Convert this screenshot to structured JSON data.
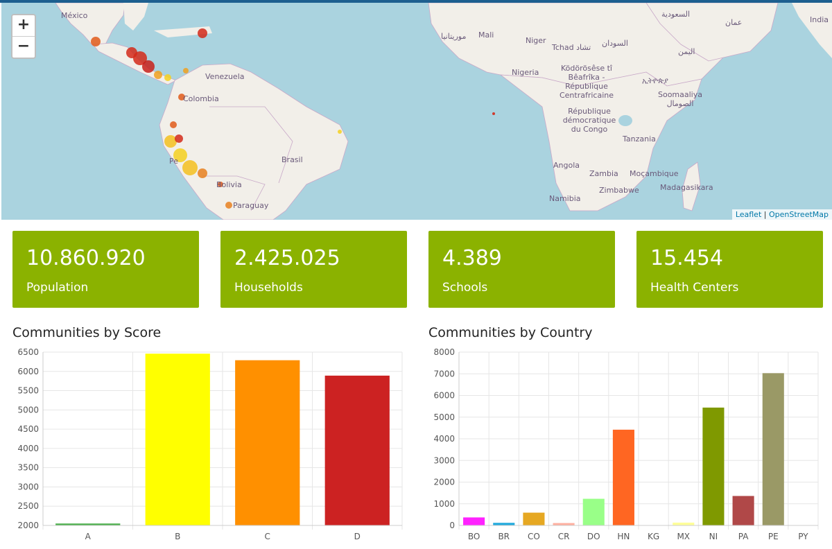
{
  "map": {
    "zoom_in": "+",
    "zoom_out": "−",
    "attribution_leaflet": "Leaflet",
    "attribution_sep": " | ",
    "attribution_osm": "OpenStreetMap",
    "labels": [
      {
        "text": "México"
      },
      {
        "text": "Venezuela"
      },
      {
        "text": "Colombia"
      },
      {
        "text": "Brasil"
      },
      {
        "text": "Bolivia"
      },
      {
        "text": "Paraguay"
      },
      {
        "text": "Mali"
      },
      {
        "text": "Niger"
      },
      {
        "text": "موريتانيا"
      },
      {
        "text": "Tchad تشاد"
      },
      {
        "text": "السودان"
      },
      {
        "text": "Nigeria"
      },
      {
        "text": "Ködörösêse tî Bêafrîka - République Centrafricaine"
      },
      {
        "text": "République démocratique du Congo"
      },
      {
        "text": "Tanzania"
      },
      {
        "text": "Angola"
      },
      {
        "text": "Zambia"
      },
      {
        "text": "Moçambique"
      },
      {
        "text": "Zimbabwe"
      },
      {
        "text": "Namibia"
      },
      {
        "text": "Madagasikara"
      },
      {
        "text": "Soomaaliya الصومال"
      },
      {
        "text": "ኢትዮጵያ"
      },
      {
        "text": "السعودية"
      },
      {
        "text": "اليمن"
      },
      {
        "text": "عمان"
      },
      {
        "text": "India"
      },
      {
        "text": "Pe"
      }
    ]
  },
  "stats": [
    {
      "value": "10.860.920",
      "label": "Population"
    },
    {
      "value": "2.425.025",
      "label": "Households"
    },
    {
      "value": "4.389",
      "label": "Schools"
    },
    {
      "value": "15.454",
      "label": "Health Centers"
    }
  ],
  "colors": {
    "stat_bg": "#8bb200",
    "ocean": "#aad3df",
    "land": "#f2efe9"
  },
  "chart_data": [
    {
      "type": "bar",
      "title": "Communities by Score",
      "categories": [
        "A",
        "B",
        "C",
        "D"
      ],
      "values": [
        2050,
        6460,
        6290,
        5890
      ],
      "colors": [
        "#4cb04c",
        "#ffff00",
        "#ff9000",
        "#cc2222"
      ],
      "ylim": [
        2000,
        6500
      ],
      "yticks": [
        2000,
        2500,
        3000,
        3500,
        4000,
        4500,
        5000,
        5500,
        6000,
        6500
      ],
      "grid": true
    },
    {
      "type": "bar",
      "title": "Communities by Country",
      "categories": [
        "BO",
        "BR",
        "CO",
        "CR",
        "DO",
        "HN",
        "KG",
        "MX",
        "NI",
        "PA",
        "PE",
        "PY"
      ],
      "values": [
        370,
        120,
        590,
        110,
        1230,
        4420,
        0,
        130,
        5440,
        1360,
        7030,
        0
      ],
      "colors": [
        "#ff22ff",
        "#22aadd",
        "#e6a822",
        "#ffb0a0",
        "#99ff88",
        "#ff6622",
        "#cccccc",
        "#ffff99",
        "#7f9900",
        "#b04848",
        "#9a9966",
        "#cccccc"
      ],
      "ylim": [
        0,
        8000
      ],
      "yticks": [
        0,
        1000,
        2000,
        3000,
        4000,
        5000,
        6000,
        7000,
        8000
      ],
      "grid": true
    }
  ]
}
